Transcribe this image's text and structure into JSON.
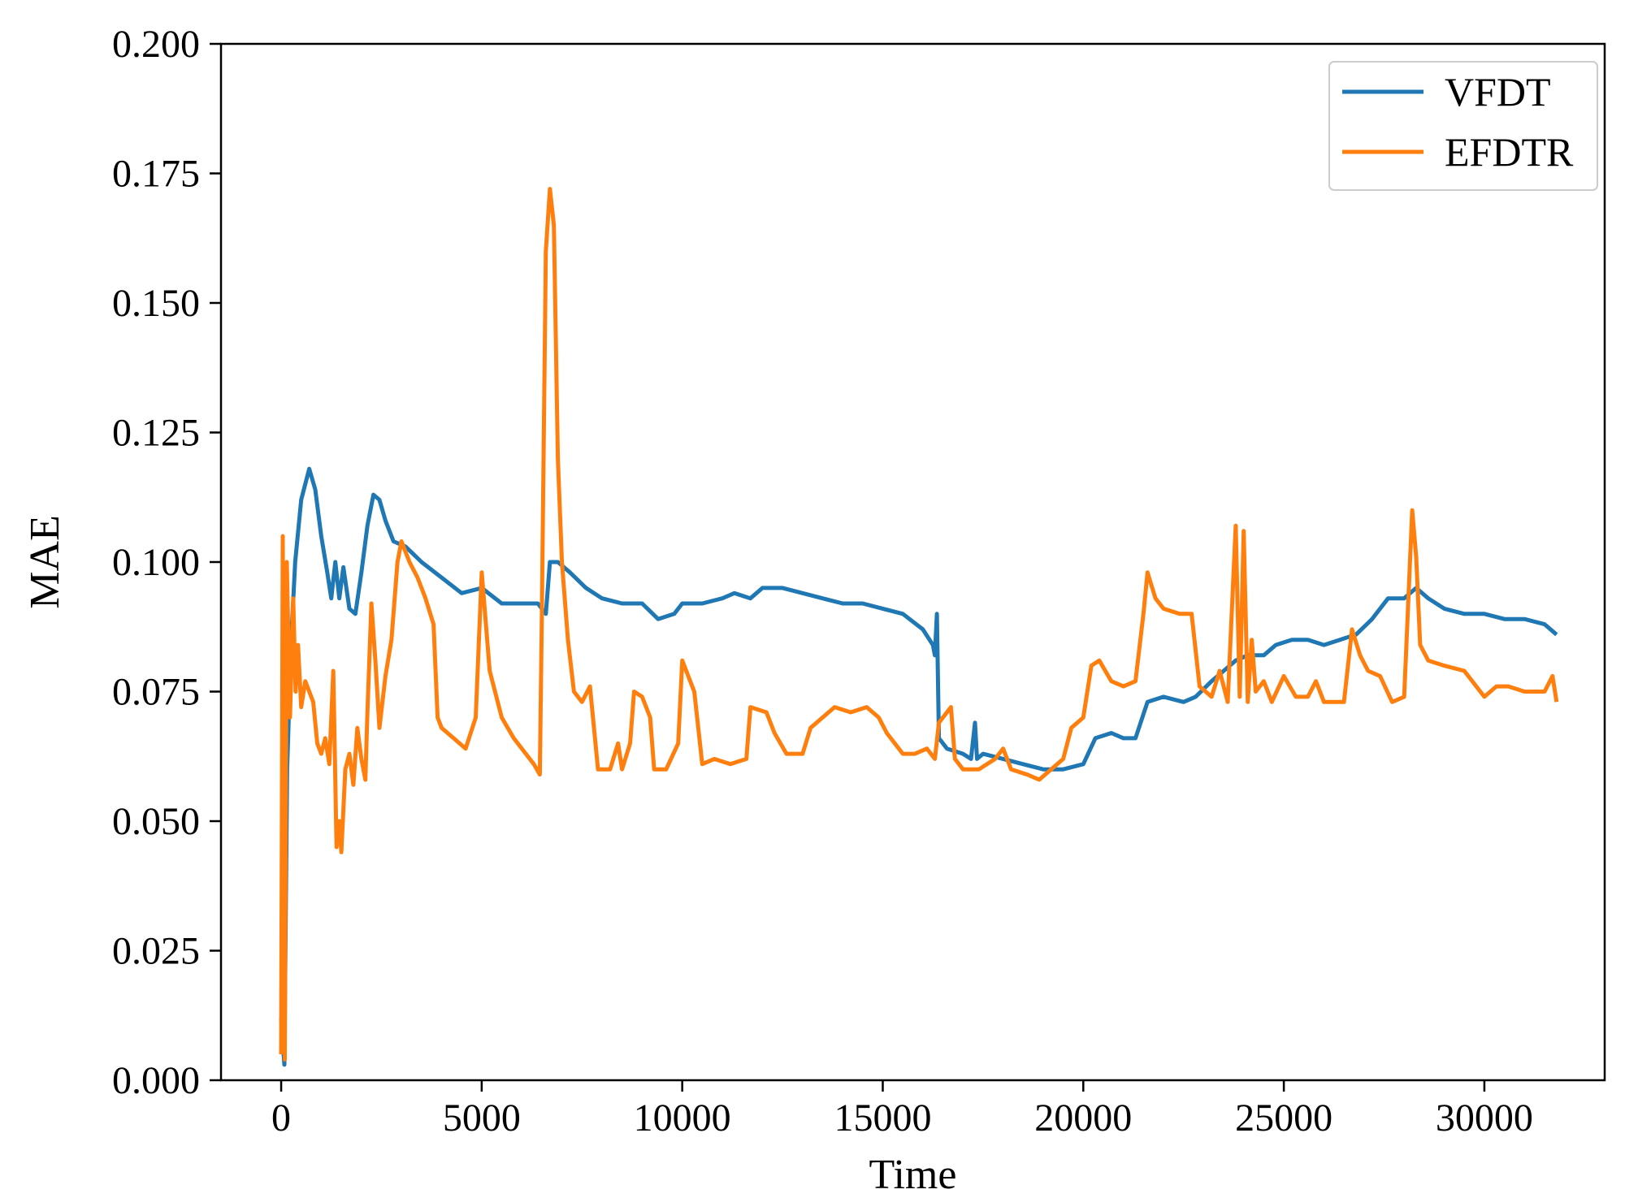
{
  "chart_data": {
    "type": "line",
    "title": "",
    "xlabel": "Time",
    "ylabel": "MAE",
    "xlim": [
      -1500,
      33000
    ],
    "ylim": [
      0.0,
      0.2
    ],
    "xticks": [
      0,
      5000,
      10000,
      15000,
      20000,
      25000,
      30000
    ],
    "xtick_labels": [
      "0",
      "5000",
      "10000",
      "15000",
      "20000",
      "25000",
      "30000"
    ],
    "yticks": [
      0.0,
      0.025,
      0.05,
      0.075,
      0.1,
      0.125,
      0.15,
      0.175,
      0.2
    ],
    "ytick_labels": [
      "0.000",
      "0.025",
      "0.050",
      "0.075",
      "0.100",
      "0.125",
      "0.150",
      "0.175",
      "0.200"
    ],
    "grid": false,
    "legend": {
      "position": "top-right",
      "entries": [
        "VFDT",
        "EFDTR"
      ]
    },
    "series": [
      {
        "name": "VFDT",
        "color": "#1f77b4",
        "points": [
          [
            0,
            0.012
          ],
          [
            80,
            0.003
          ],
          [
            150,
            0.06
          ],
          [
            250,
            0.085
          ],
          [
            350,
            0.1
          ],
          [
            500,
            0.112
          ],
          [
            700,
            0.118
          ],
          [
            850,
            0.114
          ],
          [
            1000,
            0.105
          ],
          [
            1150,
            0.098
          ],
          [
            1250,
            0.093
          ],
          [
            1350,
            0.1
          ],
          [
            1450,
            0.093
          ],
          [
            1550,
            0.099
          ],
          [
            1700,
            0.091
          ],
          [
            1850,
            0.09
          ],
          [
            2000,
            0.098
          ],
          [
            2150,
            0.107
          ],
          [
            2300,
            0.113
          ],
          [
            2450,
            0.112
          ],
          [
            2600,
            0.108
          ],
          [
            2800,
            0.104
          ],
          [
            3100,
            0.103
          ],
          [
            3500,
            0.1
          ],
          [
            4000,
            0.097
          ],
          [
            4500,
            0.094
          ],
          [
            5000,
            0.095
          ],
          [
            5500,
            0.092
          ],
          [
            6000,
            0.092
          ],
          [
            6400,
            0.092
          ],
          [
            6600,
            0.09
          ],
          [
            6700,
            0.1
          ],
          [
            6900,
            0.1
          ],
          [
            7200,
            0.098
          ],
          [
            7600,
            0.095
          ],
          [
            8000,
            0.093
          ],
          [
            8500,
            0.092
          ],
          [
            9000,
            0.092
          ],
          [
            9400,
            0.089
          ],
          [
            9800,
            0.09
          ],
          [
            10000,
            0.092
          ],
          [
            10500,
            0.092
          ],
          [
            11000,
            0.093
          ],
          [
            11300,
            0.094
          ],
          [
            11700,
            0.093
          ],
          [
            12000,
            0.095
          ],
          [
            12500,
            0.095
          ],
          [
            13000,
            0.094
          ],
          [
            13500,
            0.093
          ],
          [
            14000,
            0.092
          ],
          [
            14500,
            0.092
          ],
          [
            15000,
            0.091
          ],
          [
            15500,
            0.09
          ],
          [
            16000,
            0.087
          ],
          [
            16250,
            0.084
          ],
          [
            16300,
            0.082
          ],
          [
            16350,
            0.09
          ],
          [
            16400,
            0.066
          ],
          [
            16600,
            0.064
          ],
          [
            17000,
            0.063
          ],
          [
            17200,
            0.062
          ],
          [
            17300,
            0.069
          ],
          [
            17350,
            0.062
          ],
          [
            17500,
            0.063
          ],
          [
            18000,
            0.062
          ],
          [
            18500,
            0.061
          ],
          [
            19000,
            0.06
          ],
          [
            19500,
            0.06
          ],
          [
            20000,
            0.061
          ],
          [
            20300,
            0.066
          ],
          [
            20700,
            0.067
          ],
          [
            21000,
            0.066
          ],
          [
            21300,
            0.066
          ],
          [
            21600,
            0.073
          ],
          [
            22000,
            0.074
          ],
          [
            22500,
            0.073
          ],
          [
            22800,
            0.074
          ],
          [
            23200,
            0.077
          ],
          [
            23500,
            0.079
          ],
          [
            23800,
            0.081
          ],
          [
            24100,
            0.082
          ],
          [
            24500,
            0.082
          ],
          [
            24800,
            0.084
          ],
          [
            25200,
            0.085
          ],
          [
            25600,
            0.085
          ],
          [
            26000,
            0.084
          ],
          [
            26400,
            0.085
          ],
          [
            26800,
            0.086
          ],
          [
            27200,
            0.089
          ],
          [
            27600,
            0.093
          ],
          [
            28000,
            0.093
          ],
          [
            28300,
            0.095
          ],
          [
            28600,
            0.093
          ],
          [
            29000,
            0.091
          ],
          [
            29500,
            0.09
          ],
          [
            30000,
            0.09
          ],
          [
            30500,
            0.089
          ],
          [
            31000,
            0.089
          ],
          [
            31500,
            0.088
          ],
          [
            31800,
            0.086
          ]
        ]
      },
      {
        "name": "EFDTR",
        "color": "#ff7f0e",
        "points": [
          [
            0,
            0.005
          ],
          [
            40,
            0.105
          ],
          [
            90,
            0.004
          ],
          [
            140,
            0.1
          ],
          [
            220,
            0.07
          ],
          [
            300,
            0.093
          ],
          [
            360,
            0.075
          ],
          [
            420,
            0.084
          ],
          [
            500,
            0.072
          ],
          [
            600,
            0.077
          ],
          [
            700,
            0.075
          ],
          [
            800,
            0.073
          ],
          [
            900,
            0.065
          ],
          [
            1000,
            0.063
          ],
          [
            1100,
            0.066
          ],
          [
            1200,
            0.061
          ],
          [
            1300,
            0.079
          ],
          [
            1380,
            0.045
          ],
          [
            1450,
            0.05
          ],
          [
            1500,
            0.044
          ],
          [
            1600,
            0.06
          ],
          [
            1700,
            0.063
          ],
          [
            1800,
            0.057
          ],
          [
            1900,
            0.068
          ],
          [
            2000,
            0.062
          ],
          [
            2100,
            0.058
          ],
          [
            2150,
            0.071
          ],
          [
            2250,
            0.092
          ],
          [
            2350,
            0.081
          ],
          [
            2450,
            0.068
          ],
          [
            2600,
            0.078
          ],
          [
            2750,
            0.085
          ],
          [
            2900,
            0.1
          ],
          [
            3000,
            0.104
          ],
          [
            3200,
            0.1
          ],
          [
            3400,
            0.097
          ],
          [
            3600,
            0.093
          ],
          [
            3800,
            0.088
          ],
          [
            3900,
            0.07
          ],
          [
            4000,
            0.068
          ],
          [
            4300,
            0.066
          ],
          [
            4600,
            0.064
          ],
          [
            4850,
            0.07
          ],
          [
            5000,
            0.098
          ],
          [
            5200,
            0.079
          ],
          [
            5500,
            0.07
          ],
          [
            5800,
            0.066
          ],
          [
            6100,
            0.063
          ],
          [
            6300,
            0.061
          ],
          [
            6450,
            0.059
          ],
          [
            6500,
            0.09
          ],
          [
            6600,
            0.16
          ],
          [
            6700,
            0.172
          ],
          [
            6800,
            0.165
          ],
          [
            6900,
            0.12
          ],
          [
            7000,
            0.1
          ],
          [
            7150,
            0.085
          ],
          [
            7300,
            0.075
          ],
          [
            7500,
            0.073
          ],
          [
            7700,
            0.076
          ],
          [
            7900,
            0.06
          ],
          [
            8200,
            0.06
          ],
          [
            8400,
            0.065
          ],
          [
            8500,
            0.06
          ],
          [
            8700,
            0.065
          ],
          [
            8800,
            0.075
          ],
          [
            9000,
            0.074
          ],
          [
            9200,
            0.07
          ],
          [
            9300,
            0.06
          ],
          [
            9600,
            0.06
          ],
          [
            9900,
            0.065
          ],
          [
            10000,
            0.081
          ],
          [
            10200,
            0.077
          ],
          [
            10300,
            0.075
          ],
          [
            10500,
            0.061
          ],
          [
            10800,
            0.062
          ],
          [
            11200,
            0.061
          ],
          [
            11600,
            0.062
          ],
          [
            11700,
            0.072
          ],
          [
            12100,
            0.071
          ],
          [
            12300,
            0.067
          ],
          [
            12600,
            0.063
          ],
          [
            13000,
            0.063
          ],
          [
            13200,
            0.068
          ],
          [
            13500,
            0.07
          ],
          [
            13800,
            0.072
          ],
          [
            14200,
            0.071
          ],
          [
            14600,
            0.072
          ],
          [
            14900,
            0.07
          ],
          [
            15100,
            0.067
          ],
          [
            15300,
            0.065
          ],
          [
            15500,
            0.063
          ],
          [
            15800,
            0.063
          ],
          [
            16100,
            0.064
          ],
          [
            16300,
            0.062
          ],
          [
            16400,
            0.069
          ],
          [
            16700,
            0.072
          ],
          [
            16800,
            0.062
          ],
          [
            17000,
            0.06
          ],
          [
            17400,
            0.06
          ],
          [
            17800,
            0.062
          ],
          [
            18000,
            0.064
          ],
          [
            18200,
            0.06
          ],
          [
            18600,
            0.059
          ],
          [
            18900,
            0.058
          ],
          [
            19200,
            0.06
          ],
          [
            19500,
            0.062
          ],
          [
            19700,
            0.068
          ],
          [
            20000,
            0.07
          ],
          [
            20200,
            0.08
          ],
          [
            20400,
            0.081
          ],
          [
            20700,
            0.077
          ],
          [
            21000,
            0.076
          ],
          [
            21300,
            0.077
          ],
          [
            21500,
            0.09
          ],
          [
            21600,
            0.098
          ],
          [
            21800,
            0.093
          ],
          [
            22000,
            0.091
          ],
          [
            22400,
            0.09
          ],
          [
            22700,
            0.09
          ],
          [
            22900,
            0.076
          ],
          [
            23200,
            0.074
          ],
          [
            23400,
            0.079
          ],
          [
            23600,
            0.073
          ],
          [
            23800,
            0.107
          ],
          [
            23900,
            0.074
          ],
          [
            24000,
            0.106
          ],
          [
            24100,
            0.073
          ],
          [
            24200,
            0.085
          ],
          [
            24300,
            0.075
          ],
          [
            24500,
            0.077
          ],
          [
            24700,
            0.073
          ],
          [
            25000,
            0.078
          ],
          [
            25300,
            0.074
          ],
          [
            25600,
            0.074
          ],
          [
            25800,
            0.077
          ],
          [
            26000,
            0.073
          ],
          [
            26500,
            0.073
          ],
          [
            26700,
            0.087
          ],
          [
            26900,
            0.082
          ],
          [
            27100,
            0.079
          ],
          [
            27400,
            0.078
          ],
          [
            27700,
            0.073
          ],
          [
            28000,
            0.074
          ],
          [
            28200,
            0.11
          ],
          [
            28300,
            0.101
          ],
          [
            28400,
            0.084
          ],
          [
            28600,
            0.081
          ],
          [
            29000,
            0.08
          ],
          [
            29500,
            0.079
          ],
          [
            29800,
            0.076
          ],
          [
            30000,
            0.074
          ],
          [
            30300,
            0.076
          ],
          [
            30600,
            0.076
          ],
          [
            31000,
            0.075
          ],
          [
            31500,
            0.075
          ],
          [
            31700,
            0.078
          ],
          [
            31800,
            0.073
          ]
        ]
      }
    ]
  }
}
